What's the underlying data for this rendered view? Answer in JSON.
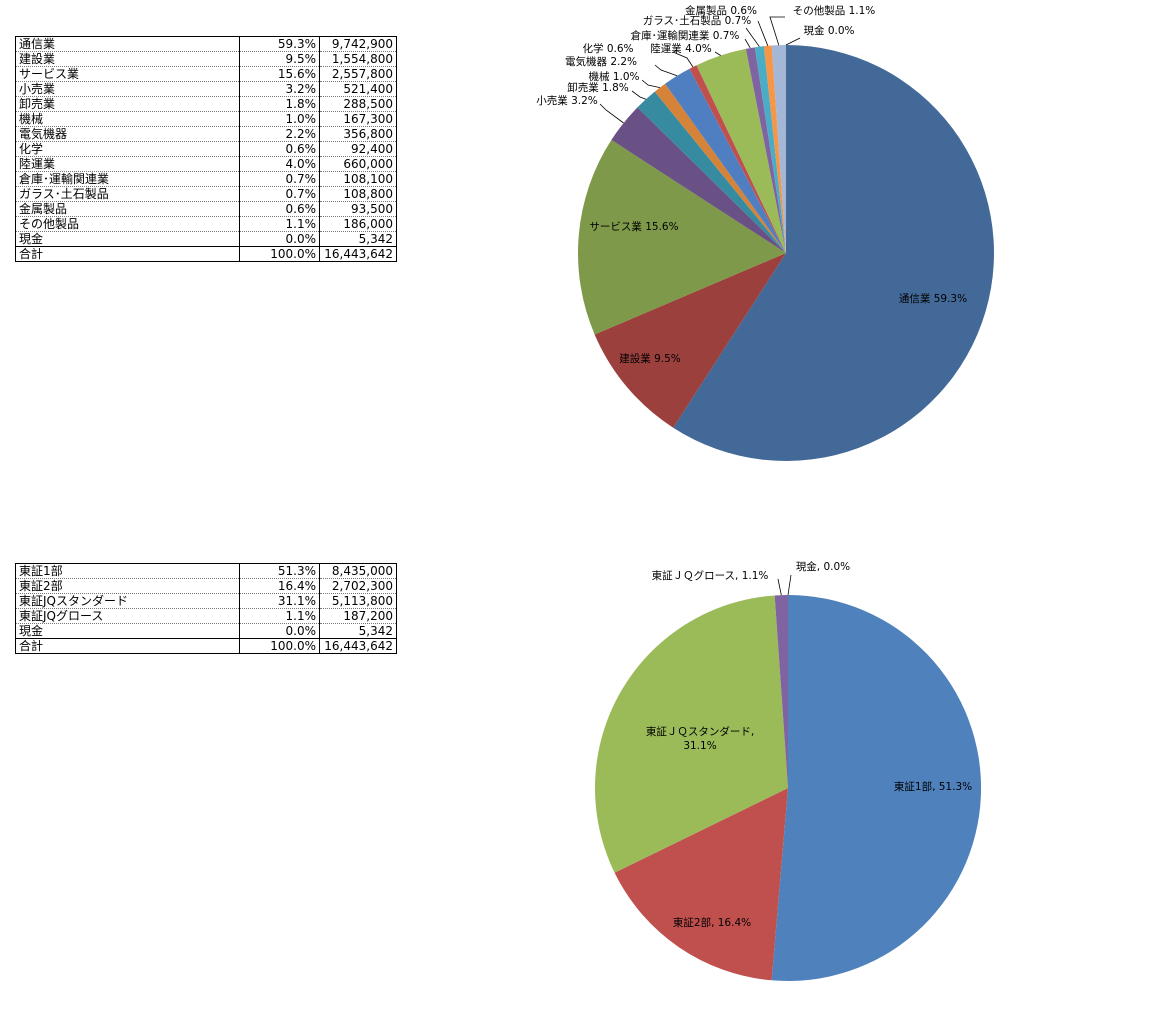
{
  "industry_table": {
    "rows": [
      {
        "name": "通信業",
        "pct": "59.3%",
        "amount": "9,742,900"
      },
      {
        "name": "建設業",
        "pct": "9.5%",
        "amount": "1,554,800"
      },
      {
        "name": "サービス業",
        "pct": "15.6%",
        "amount": "2,557,800"
      },
      {
        "name": "小売業",
        "pct": "3.2%",
        "amount": "521,400"
      },
      {
        "name": "卸売業",
        "pct": "1.8%",
        "amount": "288,500"
      },
      {
        "name": "機械",
        "pct": "1.0%",
        "amount": "167,300"
      },
      {
        "name": "電気機器",
        "pct": "2.2%",
        "amount": "356,800"
      },
      {
        "name": "化学",
        "pct": "0.6%",
        "amount": "92,400"
      },
      {
        "name": "陸運業",
        "pct": "4.0%",
        "amount": "660,000"
      },
      {
        "name": "倉庫･運輸関連業",
        "pct": "0.7%",
        "amount": "108,100"
      },
      {
        "name": "ガラス･土石製品",
        "pct": "0.7%",
        "amount": "108,800"
      },
      {
        "name": "金属製品",
        "pct": "0.6%",
        "amount": "93,500"
      },
      {
        "name": "その他製品",
        "pct": "1.1%",
        "amount": "186,000"
      },
      {
        "name": "現金",
        "pct": "0.0%",
        "amount": "5,342"
      }
    ],
    "total": {
      "name": "合計",
      "pct": "100.0%",
      "amount": "16,443,642"
    }
  },
  "market_table": {
    "rows": [
      {
        "name": "東証1部",
        "pct": "51.3%",
        "amount": "8,435,000"
      },
      {
        "name": "東証2部",
        "pct": "16.4%",
        "amount": "2,702,300"
      },
      {
        "name": "東証JQスタンダード",
        "pct": "31.1%",
        "amount": "5,113,800"
      },
      {
        "name": "東証JQグロース",
        "pct": "1.1%",
        "amount": "187,200"
      },
      {
        "name": "現金",
        "pct": "0.0%",
        "amount": "5,342"
      }
    ],
    "total": {
      "name": "合計",
      "pct": "100.0%",
      "amount": "16,443,642"
    }
  },
  "chart_data": [
    {
      "type": "pie",
      "title": "",
      "legend": "none",
      "slices": [
        {
          "label": "通信業",
          "value": 59.3,
          "display": "通信業 59.3%",
          "color": "#436999"
        },
        {
          "label": "建設業",
          "value": 9.5,
          "display": "建設業 9.5%",
          "color": "#9b403d"
        },
        {
          "label": "サービス業",
          "value": 15.6,
          "display": "サービス業 15.6%",
          "color": "#7e994a"
        },
        {
          "label": "小売業",
          "value": 3.2,
          "display": "小売業 3.2%",
          "color": "#695186"
        },
        {
          "label": "卸売業",
          "value": 1.8,
          "display": "卸売業 1.8%",
          "color": "#378ba0"
        },
        {
          "label": "機械",
          "value": 1.0,
          "display": "機械 1.0%",
          "color": "#d6833a"
        },
        {
          "label": "電気機器",
          "value": 2.2,
          "display": "電気機器 2.2%",
          "color": "#4f7fc0"
        },
        {
          "label": "化学",
          "value": 0.6,
          "display": "化学 0.6%",
          "color": "#c0504d"
        },
        {
          "label": "陸運業",
          "value": 4.0,
          "display": "陸運業 4.0%",
          "color": "#9bbb59"
        },
        {
          "label": "倉庫･運輸関連業",
          "value": 0.7,
          "display": "倉庫･運輸関連業 0.7%",
          "color": "#8064a2"
        },
        {
          "label": "ガラス･土石製品",
          "value": 0.7,
          "display": "ガラス･土石製品 0.7%",
          "color": "#4bacc6"
        },
        {
          "label": "金属製品",
          "value": 0.6,
          "display": "金属製品 0.6%",
          "color": "#f79646"
        },
        {
          "label": "その他製品",
          "value": 1.1,
          "display": "その他製品 1.1%",
          "color": "#a5b7d6"
        },
        {
          "label": "現金",
          "value": 0.0,
          "display": "現金 0.0%",
          "color": "#d99795"
        }
      ]
    },
    {
      "type": "pie",
      "title": "",
      "legend": "none",
      "slices": [
        {
          "label": "東証1部",
          "value": 51.3,
          "display": "東証1部, 51.3%",
          "color": "#4f81bd"
        },
        {
          "label": "東証2部",
          "value": 16.4,
          "display": "東証2部, 16.4%",
          "color": "#c0504d"
        },
        {
          "label": "東証ＪＱスタンダード",
          "value": 31.1,
          "display": "東証ＪＱスタンダード, 31.1%",
          "display_lines": [
            "東証ＪＱスタンダード,",
            "31.1%"
          ],
          "color": "#9bbb59"
        },
        {
          "label": "東証ＪＱグロース",
          "value": 1.1,
          "display": "東証ＪＱグロース, 1.1%",
          "color": "#8064a2"
        },
        {
          "label": "現金",
          "value": 0.0,
          "display": "現金, 0.0%",
          "color": "#4bacc6"
        }
      ]
    }
  ]
}
